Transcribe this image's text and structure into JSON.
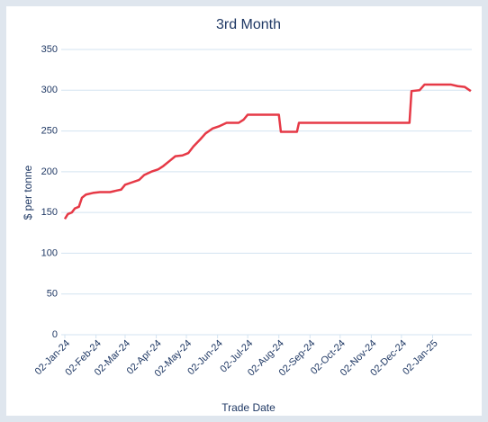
{
  "chart_data": {
    "type": "line",
    "title": "3rd Month",
    "x_label": "Trade Date",
    "y_label": "$ per tonne",
    "x": [
      "02-Jan-24",
      "05-Jan-24",
      "09-Jan-24",
      "12-Jan-24",
      "16-Jan-24",
      "19-Jan-24",
      "23-Jan-24",
      "30-Jan-24",
      "06-Feb-24",
      "16-Feb-24",
      "23-Feb-24",
      "27-Feb-24",
      "02-Mar-24",
      "09-Mar-24",
      "16-Mar-24",
      "21-Mar-24",
      "28-Mar-24",
      "04-Apr-24",
      "09-Apr-24",
      "16-Apr-24",
      "21-Apr-24",
      "28-Apr-24",
      "04-May-24",
      "09-May-24",
      "16-May-24",
      "21-May-24",
      "28-May-24",
      "04-Jun-24",
      "11-Jun-24",
      "23-Jun-24",
      "28-Jun-24",
      "02-Jul-24",
      "02-Aug-24",
      "04-Aug-24",
      "20-Aug-24",
      "22-Aug-24",
      "10-Dec-24",
      "12-Dec-24",
      "20-Dec-24",
      "25-Dec-24",
      "20-Jan-25",
      "27-Jan-25",
      "03-Feb-25",
      "09-Feb-25"
    ],
    "series": [
      {
        "name": "3rd Month",
        "color": "#e63946",
        "values": [
          142,
          148,
          150,
          155,
          157,
          168,
          172,
          174,
          175,
          175,
          177,
          178,
          184,
          187,
          190,
          196,
          200,
          203,
          207,
          214,
          219,
          220,
          223,
          231,
          240,
          247,
          253,
          256,
          260,
          260,
          264,
          270,
          270,
          249,
          249,
          260,
          260,
          299,
          300,
          307,
          307,
          305,
          304,
          299
        ]
      }
    ],
    "xlim": [
      "02-Jan-24",
      "10-Feb-25"
    ],
    "xticks": [
      "02-Jan-24",
      "02-Feb-24",
      "02-Mar-24",
      "02-Apr-24",
      "02-May-24",
      "02-Jun-24",
      "02-Jul-24",
      "02-Aug-24",
      "02-Sep-24",
      "02-Oct-24",
      "02-Nov-24",
      "02-Dec-24",
      "02-Jan-25"
    ],
    "ylim": [
      0,
      350
    ],
    "yticks": [
      0,
      50,
      100,
      150,
      200,
      250,
      300,
      350
    ],
    "grid": true
  }
}
